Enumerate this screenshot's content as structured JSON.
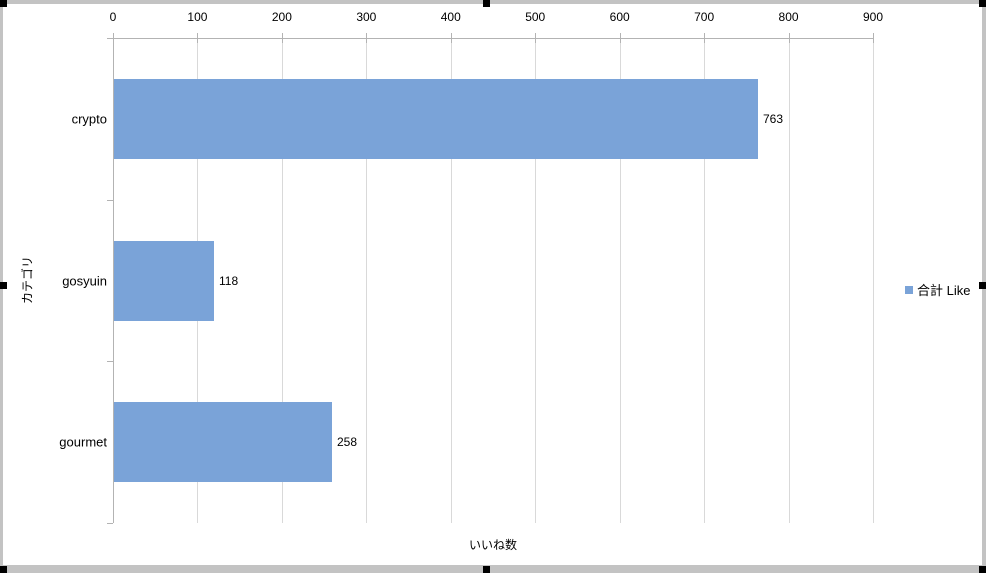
{
  "chart_data": {
    "type": "bar",
    "orientation": "horizontal",
    "categories": [
      "crypto",
      "gosyuin",
      "gourmet"
    ],
    "series": [
      {
        "name": "合計 Like",
        "values": [
          763,
          118,
          258
        ]
      }
    ],
    "data_labels": [
      "763",
      "118",
      "258"
    ],
    "xlabel": "いいね数",
    "ylabel": "カテゴリ",
    "xlim": [
      0,
      900
    ],
    "xticks": [
      "0",
      "100",
      "200",
      "300",
      "400",
      "500",
      "600",
      "700",
      "800",
      "900"
    ],
    "grid": true,
    "legend_position": "right",
    "bar_color": "#7aa3d8",
    "axis_color": "#b3b3b3",
    "gridline_color": "#d9d9d9"
  },
  "legend": {
    "series_label": "合計 Like"
  },
  "selection": {
    "state": "chart-selected-with-handles"
  }
}
